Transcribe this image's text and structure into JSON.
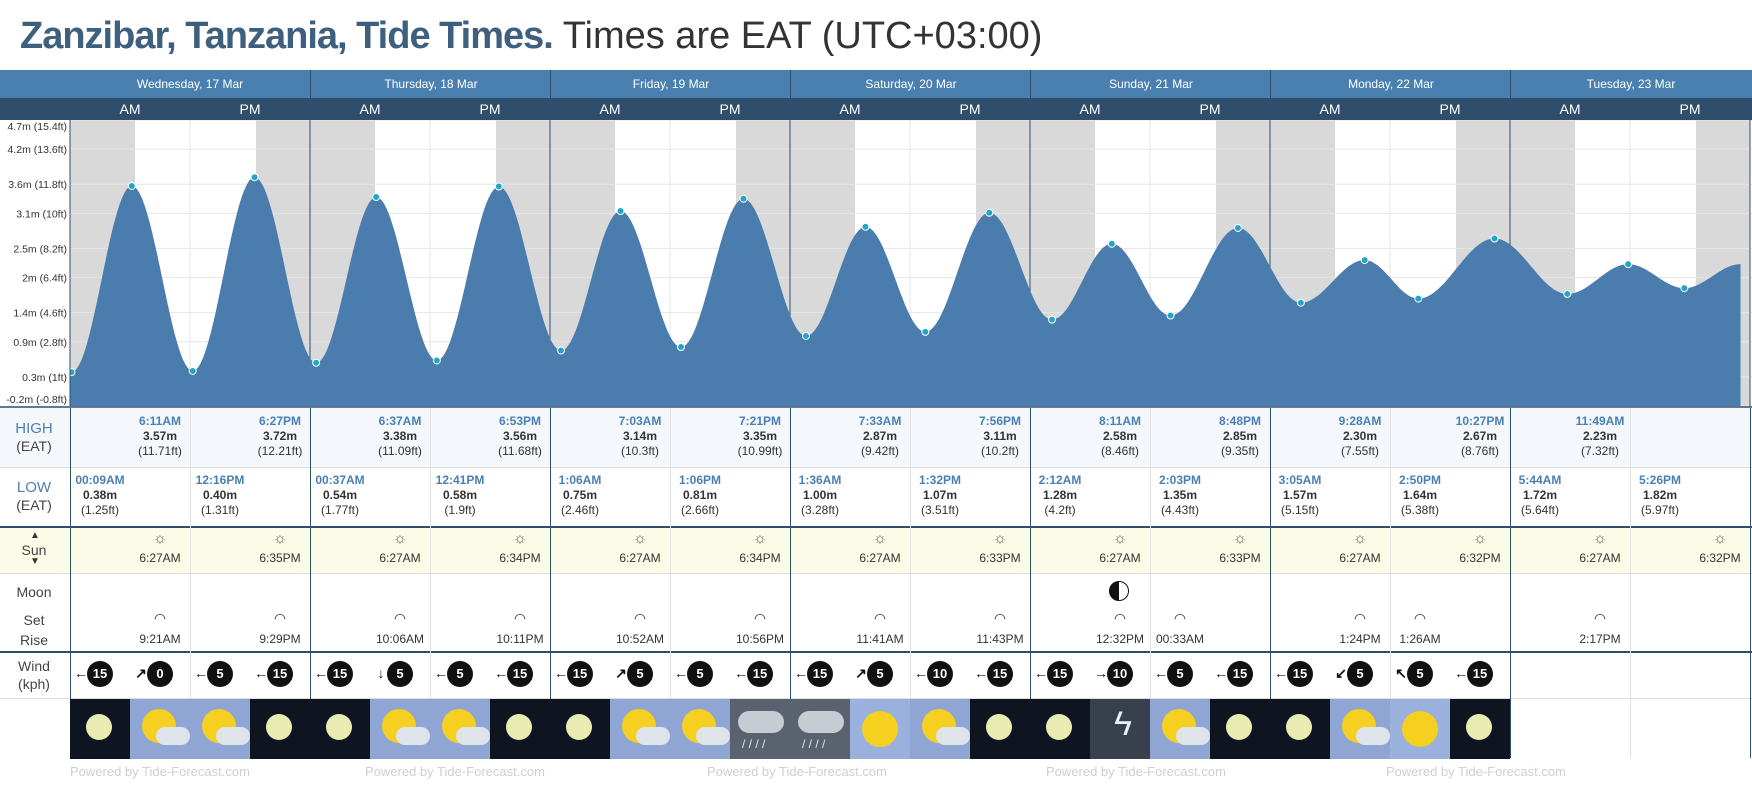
{
  "title": {
    "place": "Zanzibar, Tanzania, Tide Times.",
    "timezone": "Times are EAT (UTC+03:00)"
  },
  "days": [
    "Wednesday, 17 Mar",
    "Thursday, 18 Mar",
    "Friday, 19 Mar",
    "Saturday, 20 Mar",
    "Sunday, 21 Mar",
    "Monday, 22 Mar",
    "Tuesday, 23 Mar"
  ],
  "am_label": "AM",
  "pm_label": "PM",
  "y_axis_labels": [
    "4.7m (15.4ft)",
    "4.2m (13.6ft)",
    "3.6m (11.8ft)",
    "3.1m (10ft)",
    "2.5m (8.2ft)",
    "2m (6.4ft)",
    "1.4m (4.6ft)",
    "0.9m (2.8ft)",
    "0.3m (1ft)",
    "-0.2m (-0.8ft)"
  ],
  "labels": {
    "high": "HIGH",
    "high_tz": "(EAT)",
    "low": "LOW",
    "low_tz": "(EAT)",
    "sun": "Sun",
    "moon": "Moon",
    "set": "Set",
    "rise": "Rise",
    "wind": "Wind",
    "wind_unit": "(kph)"
  },
  "chart_data": {
    "type": "area",
    "ylabel": "",
    "ylim": [
      -0.2,
      4.7
    ],
    "series": [
      {
        "points": [
          {
            "t": "Wed 00:09",
            "h": 0.38
          },
          {
            "t": "Wed 06:11",
            "h": 3.57
          },
          {
            "t": "Wed 12:16",
            "h": 0.4
          },
          {
            "t": "Wed 18:27",
            "h": 3.72
          },
          {
            "t": "Thu 00:37",
            "h": 0.54
          },
          {
            "t": "Thu 06:37",
            "h": 3.38
          },
          {
            "t": "Thu 12:41",
            "h": 0.58
          },
          {
            "t": "Thu 18:53",
            "h": 3.56
          },
          {
            "t": "Fri 01:06",
            "h": 0.75
          },
          {
            "t": "Fri 07:03",
            "h": 3.14
          },
          {
            "t": "Fri 13:06",
            "h": 0.81
          },
          {
            "t": "Fri 19:21",
            "h": 3.35
          },
          {
            "t": "Sat 01:36",
            "h": 1.0
          },
          {
            "t": "Sat 07:33",
            "h": 2.87
          },
          {
            "t": "Sat 13:32",
            "h": 1.07
          },
          {
            "t": "Sat 19:56",
            "h": 3.11
          },
          {
            "t": "Sun 02:12",
            "h": 1.28
          },
          {
            "t": "Sun 08:11",
            "h": 2.58
          },
          {
            "t": "Sun 14:03",
            "h": 1.35
          },
          {
            "t": "Sun 20:48",
            "h": 2.85
          },
          {
            "t": "Mon 03:05",
            "h": 1.57
          },
          {
            "t": "Mon 09:28",
            "h": 2.3
          },
          {
            "t": "Mon 14:50",
            "h": 1.64
          },
          {
            "t": "Mon 22:27",
            "h": 2.67
          },
          {
            "t": "Tue 05:44",
            "h": 1.72
          },
          {
            "t": "Tue 11:49",
            "h": 2.23
          },
          {
            "t": "Tue 17:26",
            "h": 1.82
          }
        ]
      }
    ]
  },
  "high_tides": [
    {
      "time": "6:11AM",
      "m": "3.57m",
      "ft": "(11.71ft)"
    },
    {
      "time": "6:27PM",
      "m": "3.72m",
      "ft": "(12.21ft)"
    },
    {
      "time": "6:37AM",
      "m": "3.38m",
      "ft": "(11.09ft)"
    },
    {
      "time": "6:53PM",
      "m": "3.56m",
      "ft": "(11.68ft)"
    },
    {
      "time": "7:03AM",
      "m": "3.14m",
      "ft": "(10.3ft)"
    },
    {
      "time": "7:21PM",
      "m": "3.35m",
      "ft": "(10.99ft)"
    },
    {
      "time": "7:33AM",
      "m": "2.87m",
      "ft": "(9.42ft)"
    },
    {
      "time": "7:56PM",
      "m": "3.11m",
      "ft": "(10.2ft)"
    },
    {
      "time": "8:11AM",
      "m": "2.58m",
      "ft": "(8.46ft)"
    },
    {
      "time": "8:48PM",
      "m": "2.85m",
      "ft": "(9.35ft)"
    },
    {
      "time": "9:28AM",
      "m": "2.30m",
      "ft": "(7.55ft)"
    },
    {
      "time": "10:27PM",
      "m": "2.67m",
      "ft": "(8.76ft)"
    },
    {
      "time": "11:49AM",
      "m": "2.23m",
      "ft": "(7.32ft)"
    }
  ],
  "low_tides": [
    {
      "time": "00:09AM",
      "m": "0.38m",
      "ft": "(1.25ft)"
    },
    {
      "time": "12:16PM",
      "m": "0.40m",
      "ft": "(1.31ft)"
    },
    {
      "time": "00:37AM",
      "m": "0.54m",
      "ft": "(1.77ft)"
    },
    {
      "time": "12:41PM",
      "m": "0.58m",
      "ft": "(1.9ft)"
    },
    {
      "time": "1:06AM",
      "m": "0.75m",
      "ft": "(2.46ft)"
    },
    {
      "time": "1:06PM",
      "m": "0.81m",
      "ft": "(2.66ft)"
    },
    {
      "time": "1:36AM",
      "m": "1.00m",
      "ft": "(3.28ft)"
    },
    {
      "time": "1:32PM",
      "m": "1.07m",
      "ft": "(3.51ft)"
    },
    {
      "time": "2:12AM",
      "m": "1.28m",
      "ft": "(4.2ft)"
    },
    {
      "time": "2:03PM",
      "m": "1.35m",
      "ft": "(4.43ft)"
    },
    {
      "time": "3:05AM",
      "m": "1.57m",
      "ft": "(5.15ft)"
    },
    {
      "time": "2:50PM",
      "m": "1.64m",
      "ft": "(5.38ft)"
    },
    {
      "time": "5:44AM",
      "m": "1.72m",
      "ft": "(5.64ft)"
    },
    {
      "time": "5:26PM",
      "m": "1.82m",
      "ft": "(5.97ft)"
    }
  ],
  "sun": [
    {
      "type": "sunrise",
      "time": "6:27AM"
    },
    {
      "type": "sunset",
      "time": "6:35PM"
    },
    {
      "type": "sunrise",
      "time": "6:27AM"
    },
    {
      "type": "sunset",
      "time": "6:34PM"
    },
    {
      "type": "sunrise",
      "time": "6:27AM"
    },
    {
      "type": "sunset",
      "time": "6:34PM"
    },
    {
      "type": "sunrise",
      "time": "6:27AM"
    },
    {
      "type": "sunset",
      "time": "6:33PM"
    },
    {
      "type": "sunrise",
      "time": "6:27AM"
    },
    {
      "type": "sunset",
      "time": "6:33PM"
    },
    {
      "type": "sunrise",
      "time": "6:27AM"
    },
    {
      "type": "sunset",
      "time": "6:32PM"
    },
    {
      "type": "sunrise",
      "time": "6:27AM"
    },
    {
      "type": "sunset",
      "time": "6:32PM"
    }
  ],
  "moon": [
    {
      "type": "moonrise",
      "time": "9:21AM"
    },
    {
      "type": "moonset",
      "time": "9:29PM"
    },
    {
      "type": "moonrise",
      "time": "10:06AM"
    },
    {
      "type": "moonset",
      "time": "10:11PM"
    },
    {
      "type": "moonrise",
      "time": "10:52AM"
    },
    {
      "type": "moonset",
      "time": "10:56PM"
    },
    {
      "type": "moonrise",
      "time": "11:41AM"
    },
    {
      "type": "moonset",
      "time": "11:43PM"
    },
    {
      "type": "moonrise",
      "time": "12:32PM"
    },
    {
      "type": "moonset",
      "time": "00:33AM"
    },
    {
      "type": "moonrise",
      "time": "1:24PM"
    },
    {
      "type": "moonset",
      "time": "1:26AM"
    },
    {
      "type": "moonrise",
      "time": "2:17PM"
    }
  ],
  "moon_phase_icon": "first-quarter-moon-icon",
  "wind": [
    {
      "v": "15",
      "dir": "w"
    },
    {
      "v": "0",
      "dir": "ne"
    },
    {
      "v": "5",
      "dir": "w"
    },
    {
      "v": "15",
      "dir": "w"
    },
    {
      "v": "15",
      "dir": "w"
    },
    {
      "v": "5",
      "dir": "s"
    },
    {
      "v": "5",
      "dir": "w"
    },
    {
      "v": "15",
      "dir": "w"
    },
    {
      "v": "15",
      "dir": "w"
    },
    {
      "v": "5",
      "dir": "ne"
    },
    {
      "v": "5",
      "dir": "w"
    },
    {
      "v": "15",
      "dir": "w"
    },
    {
      "v": "15",
      "dir": "w"
    },
    {
      "v": "5",
      "dir": "ne"
    },
    {
      "v": "10",
      "dir": "w"
    },
    {
      "v": "15",
      "dir": "w"
    },
    {
      "v": "15",
      "dir": "w"
    },
    {
      "v": "10",
      "dir": "e"
    },
    {
      "v": "5",
      "dir": "w"
    },
    {
      "v": "15",
      "dir": "w"
    },
    {
      "v": "15",
      "dir": "w"
    },
    {
      "v": "5",
      "dir": "sw"
    },
    {
      "v": "5",
      "dir": "nw"
    },
    {
      "v": "15",
      "dir": "w"
    }
  ],
  "weather": [
    "clear-night",
    "partly-cloudy",
    "partly-cloudy",
    "clear-night",
    "clear-night",
    "partly-cloudy",
    "partly-cloudy",
    "clear-night",
    "clear-night",
    "partly-cloudy",
    "partly-cloudy",
    "rain",
    "rain",
    "sunny",
    "partly-cloudy",
    "clear-night",
    "clear-night",
    "thunderstorm",
    "partly-cloudy",
    "clear-night",
    "clear-night",
    "partly-cloudy",
    "sunny",
    "clear-night"
  ],
  "footer": {
    "powered": "Powered by Tide-Forecast.com"
  },
  "colors": {
    "tide_fill": "#4a7dad",
    "night_shade": "#d9d9d9",
    "header_blue": "#4a80b0",
    "header_dark": "#2f4e6c",
    "sun_row": "#fbfbe8",
    "accent": "#4a7fb3"
  }
}
